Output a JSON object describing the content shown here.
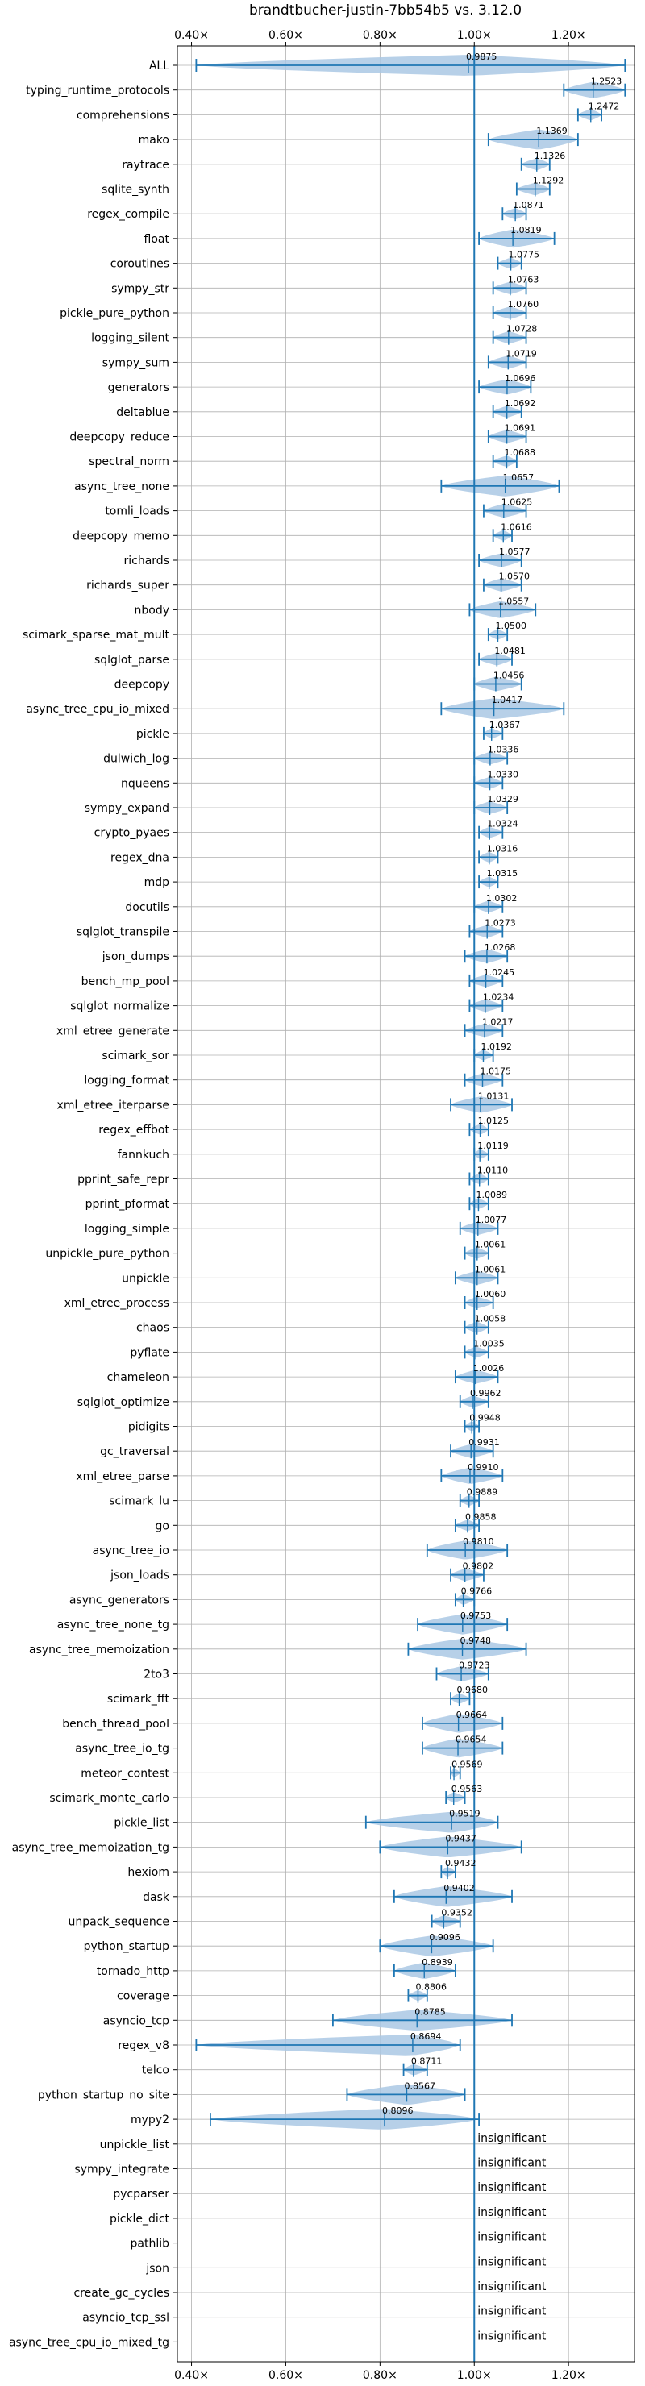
{
  "chart_data": {
    "type": "violin",
    "title": "brandtbucher-justin-7bb54b5 vs. 3.12.0",
    "xlim": [
      0.37,
      1.34
    ],
    "xticks": [
      "0.40×",
      "0.60×",
      "0.80×",
      "1.00×",
      "1.20×"
    ],
    "xtick_values": [
      0.4,
      0.6,
      0.8,
      1.0,
      1.2
    ],
    "reference_x": 1.0,
    "grid": true,
    "colors": {
      "violin": "#aac8e4",
      "line": "#1f77b4",
      "grid": "#b0b0b0"
    },
    "series": [
      {
        "name": "ALL",
        "median_label": "0.9875",
        "median": 0.9875,
        "min": 0.41,
        "max": 1.32
      },
      {
        "name": "typing_runtime_protocols",
        "median_label": "1.2523",
        "median": 1.2523,
        "min": 1.19,
        "max": 1.32
      },
      {
        "name": "comprehensions",
        "median_label": "1.2472",
        "median": 1.2472,
        "min": 1.22,
        "max": 1.27
      },
      {
        "name": "mako",
        "median_label": "1.1369",
        "median": 1.1369,
        "min": 1.03,
        "max": 1.22
      },
      {
        "name": "raytrace",
        "median_label": "1.1326",
        "median": 1.1326,
        "min": 1.1,
        "max": 1.16
      },
      {
        "name": "sqlite_synth",
        "median_label": "1.1292",
        "median": 1.1292,
        "min": 1.09,
        "max": 1.16
      },
      {
        "name": "regex_compile",
        "median_label": "1.0871",
        "median": 1.0871,
        "min": 1.06,
        "max": 1.11
      },
      {
        "name": "float",
        "median_label": "1.0819",
        "median": 1.0819,
        "min": 1.01,
        "max": 1.17
      },
      {
        "name": "coroutines",
        "median_label": "1.0775",
        "median": 1.0775,
        "min": 1.05,
        "max": 1.1
      },
      {
        "name": "sympy_str",
        "median_label": "1.0763",
        "median": 1.0763,
        "min": 1.04,
        "max": 1.11
      },
      {
        "name": "pickle_pure_python",
        "median_label": "1.0760",
        "median": 1.076,
        "min": 1.04,
        "max": 1.11
      },
      {
        "name": "logging_silent",
        "median_label": "1.0728",
        "median": 1.0728,
        "min": 1.04,
        "max": 1.11
      },
      {
        "name": "sympy_sum",
        "median_label": "1.0719",
        "median": 1.0719,
        "min": 1.03,
        "max": 1.11
      },
      {
        "name": "generators",
        "median_label": "1.0696",
        "median": 1.0696,
        "min": 1.01,
        "max": 1.12
      },
      {
        "name": "deltablue",
        "median_label": "1.0692",
        "median": 1.0692,
        "min": 1.04,
        "max": 1.1
      },
      {
        "name": "deepcopy_reduce",
        "median_label": "1.0691",
        "median": 1.0691,
        "min": 1.03,
        "max": 1.11
      },
      {
        "name": "spectral_norm",
        "median_label": "1.0688",
        "median": 1.0688,
        "min": 1.04,
        "max": 1.09
      },
      {
        "name": "async_tree_none",
        "median_label": "1.0657",
        "median": 1.0657,
        "min": 0.93,
        "max": 1.18
      },
      {
        "name": "tomli_loads",
        "median_label": "1.0625",
        "median": 1.0625,
        "min": 1.02,
        "max": 1.11
      },
      {
        "name": "deepcopy_memo",
        "median_label": "1.0616",
        "median": 1.0616,
        "min": 1.04,
        "max": 1.08
      },
      {
        "name": "richards",
        "median_label": "1.0577",
        "median": 1.0577,
        "min": 1.01,
        "max": 1.1
      },
      {
        "name": "richards_super",
        "median_label": "1.0570",
        "median": 1.057,
        "min": 1.02,
        "max": 1.1
      },
      {
        "name": "nbody",
        "median_label": "1.0557",
        "median": 1.0557,
        "min": 0.99,
        "max": 1.13
      },
      {
        "name": "scimark_sparse_mat_mult",
        "median_label": "1.0500",
        "median": 1.05,
        "min": 1.03,
        "max": 1.07
      },
      {
        "name": "sqlglot_parse",
        "median_label": "1.0481",
        "median": 1.0481,
        "min": 1.01,
        "max": 1.08
      },
      {
        "name": "deepcopy",
        "median_label": "1.0456",
        "median": 1.0456,
        "min": 1.0,
        "max": 1.1
      },
      {
        "name": "async_tree_cpu_io_mixed",
        "median_label": "1.0417",
        "median": 1.0417,
        "min": 0.93,
        "max": 1.19
      },
      {
        "name": "pickle",
        "median_label": "1.0367",
        "median": 1.0367,
        "min": 1.02,
        "max": 1.06
      },
      {
        "name": "dulwich_log",
        "median_label": "1.0336",
        "median": 1.0336,
        "min": 1.0,
        "max": 1.07
      },
      {
        "name": "nqueens",
        "median_label": "1.0330",
        "median": 1.033,
        "min": 1.0,
        "max": 1.06
      },
      {
        "name": "sympy_expand",
        "median_label": "1.0329",
        "median": 1.0329,
        "min": 1.0,
        "max": 1.07
      },
      {
        "name": "crypto_pyaes",
        "median_label": "1.0324",
        "median": 1.0324,
        "min": 1.01,
        "max": 1.06
      },
      {
        "name": "regex_dna",
        "median_label": "1.0316",
        "median": 1.0316,
        "min": 1.01,
        "max": 1.05
      },
      {
        "name": "mdp",
        "median_label": "1.0315",
        "median": 1.0315,
        "min": 1.01,
        "max": 1.05
      },
      {
        "name": "docutils",
        "median_label": "1.0302",
        "median": 1.0302,
        "min": 1.0,
        "max": 1.06
      },
      {
        "name": "sqlglot_transpile",
        "median_label": "1.0273",
        "median": 1.0273,
        "min": 0.99,
        "max": 1.06
      },
      {
        "name": "json_dumps",
        "median_label": "1.0268",
        "median": 1.0268,
        "min": 0.98,
        "max": 1.07
      },
      {
        "name": "bench_mp_pool",
        "median_label": "1.0245",
        "median": 1.0245,
        "min": 0.99,
        "max": 1.06
      },
      {
        "name": "sqlglot_normalize",
        "median_label": "1.0234",
        "median": 1.0234,
        "min": 0.99,
        "max": 1.06
      },
      {
        "name": "xml_etree_generate",
        "median_label": "1.0217",
        "median": 1.0217,
        "min": 0.98,
        "max": 1.06
      },
      {
        "name": "scimark_sor",
        "median_label": "1.0192",
        "median": 1.0192,
        "min": 1.0,
        "max": 1.04
      },
      {
        "name": "logging_format",
        "median_label": "1.0175",
        "median": 1.0175,
        "min": 0.98,
        "max": 1.06
      },
      {
        "name": "xml_etree_iterparse",
        "median_label": "1.0131",
        "median": 1.0131,
        "min": 0.95,
        "max": 1.08
      },
      {
        "name": "regex_effbot",
        "median_label": "1.0125",
        "median": 1.0125,
        "min": 0.99,
        "max": 1.03
      },
      {
        "name": "fannkuch",
        "median_label": "1.0119",
        "median": 1.0119,
        "min": 1.0,
        "max": 1.03
      },
      {
        "name": "pprint_safe_repr",
        "median_label": "1.0110",
        "median": 1.011,
        "min": 0.99,
        "max": 1.03
      },
      {
        "name": "pprint_pformat",
        "median_label": "1.0089",
        "median": 1.0089,
        "min": 0.99,
        "max": 1.03
      },
      {
        "name": "logging_simple",
        "median_label": "1.0077",
        "median": 1.0077,
        "min": 0.97,
        "max": 1.05
      },
      {
        "name": "unpickle_pure_python",
        "median_label": "1.0061",
        "median": 1.0061,
        "min": 0.98,
        "max": 1.03
      },
      {
        "name": "unpickle",
        "median_label": "1.0061",
        "median": 1.0061,
        "min": 0.96,
        "max": 1.05
      },
      {
        "name": "xml_etree_process",
        "median_label": "1.0060",
        "median": 1.006,
        "min": 0.98,
        "max": 1.04
      },
      {
        "name": "chaos",
        "median_label": "1.0058",
        "median": 1.0058,
        "min": 0.98,
        "max": 1.03
      },
      {
        "name": "pyflate",
        "median_label": "1.0035",
        "median": 1.0035,
        "min": 0.98,
        "max": 1.03
      },
      {
        "name": "chameleon",
        "median_label": "1.0026",
        "median": 1.0026,
        "min": 0.96,
        "max": 1.05
      },
      {
        "name": "sqlglot_optimize",
        "median_label": "0.9962",
        "median": 0.9962,
        "min": 0.97,
        "max": 1.03
      },
      {
        "name": "pidigits",
        "median_label": "0.9948",
        "median": 0.9948,
        "min": 0.98,
        "max": 1.01
      },
      {
        "name": "gc_traversal",
        "median_label": "0.9931",
        "median": 0.9931,
        "min": 0.95,
        "max": 1.04
      },
      {
        "name": "xml_etree_parse",
        "median_label": "0.9910",
        "median": 0.991,
        "min": 0.93,
        "max": 1.06
      },
      {
        "name": "scimark_lu",
        "median_label": "0.9889",
        "median": 0.9889,
        "min": 0.97,
        "max": 1.01
      },
      {
        "name": "go",
        "median_label": "0.9858",
        "median": 0.9858,
        "min": 0.96,
        "max": 1.01
      },
      {
        "name": "async_tree_io",
        "median_label": "0.9810",
        "median": 0.981,
        "min": 0.9,
        "max": 1.07
      },
      {
        "name": "json_loads",
        "median_label": "0.9802",
        "median": 0.9802,
        "min": 0.95,
        "max": 1.02
      },
      {
        "name": "async_generators",
        "median_label": "0.9766",
        "median": 0.9766,
        "min": 0.96,
        "max": 1.0
      },
      {
        "name": "async_tree_none_tg",
        "median_label": "0.9753",
        "median": 0.9753,
        "min": 0.88,
        "max": 1.07
      },
      {
        "name": "async_tree_memoization",
        "median_label": "0.9748",
        "median": 0.9748,
        "min": 0.86,
        "max": 1.11
      },
      {
        "name": "2to3",
        "median_label": "0.9723",
        "median": 0.9723,
        "min": 0.92,
        "max": 1.03
      },
      {
        "name": "scimark_fft",
        "median_label": "0.9680",
        "median": 0.968,
        "min": 0.95,
        "max": 0.99
      },
      {
        "name": "bench_thread_pool",
        "median_label": "0.9664",
        "median": 0.9664,
        "min": 0.89,
        "max": 1.06
      },
      {
        "name": "async_tree_io_tg",
        "median_label": "0.9654",
        "median": 0.9654,
        "min": 0.89,
        "max": 1.06
      },
      {
        "name": "meteor_contest",
        "median_label": "0.9569",
        "median": 0.9569,
        "min": 0.95,
        "max": 0.97
      },
      {
        "name": "scimark_monte_carlo",
        "median_label": "0.9563",
        "median": 0.9563,
        "min": 0.94,
        "max": 0.98
      },
      {
        "name": "pickle_list",
        "median_label": "0.9519",
        "median": 0.9519,
        "min": 0.77,
        "max": 1.05
      },
      {
        "name": "async_tree_memoization_tg",
        "median_label": "0.9437",
        "median": 0.9437,
        "min": 0.8,
        "max": 1.1
      },
      {
        "name": "hexiom",
        "median_label": "0.9432",
        "median": 0.9432,
        "min": 0.93,
        "max": 0.96
      },
      {
        "name": "dask",
        "median_label": "0.9402",
        "median": 0.9402,
        "min": 0.83,
        "max": 1.08
      },
      {
        "name": "unpack_sequence",
        "median_label": "0.9352",
        "median": 0.9352,
        "min": 0.91,
        "max": 0.97
      },
      {
        "name": "python_startup",
        "median_label": "0.9096",
        "median": 0.9096,
        "min": 0.8,
        "max": 1.04
      },
      {
        "name": "tornado_http",
        "median_label": "0.8939",
        "median": 0.8939,
        "min": 0.83,
        "max": 0.96
      },
      {
        "name": "coverage",
        "median_label": "0.8806",
        "median": 0.8806,
        "min": 0.86,
        "max": 0.9
      },
      {
        "name": "asyncio_tcp",
        "median_label": "0.8785",
        "median": 0.8785,
        "min": 0.7,
        "max": 1.08
      },
      {
        "name": "regex_v8",
        "median_label": "0.8694",
        "median": 0.8694,
        "min": 0.41,
        "max": 0.97
      },
      {
        "name": "telco",
        "median_label": "0.8711",
        "median": 0.8711,
        "min": 0.85,
        "max": 0.9
      },
      {
        "name": "python_startup_no_site",
        "median_label": "0.8567",
        "median": 0.8567,
        "min": 0.73,
        "max": 0.98
      },
      {
        "name": "mypy2",
        "median_label": "0.8096",
        "median": 0.8096,
        "min": 0.44,
        "max": 1.01
      },
      {
        "name": "unpickle_list",
        "insignificant": true
      },
      {
        "name": "sympy_integrate",
        "insignificant": true
      },
      {
        "name": "pycparser",
        "insignificant": true
      },
      {
        "name": "pickle_dict",
        "insignificant": true
      },
      {
        "name": "pathlib",
        "insignificant": true
      },
      {
        "name": "json",
        "insignificant": true
      },
      {
        "name": "create_gc_cycles",
        "insignificant": true
      },
      {
        "name": "asyncio_tcp_ssl",
        "insignificant": true
      },
      {
        "name": "async_tree_cpu_io_mixed_tg",
        "insignificant": true
      }
    ],
    "insignificant_label": "insignificant"
  }
}
